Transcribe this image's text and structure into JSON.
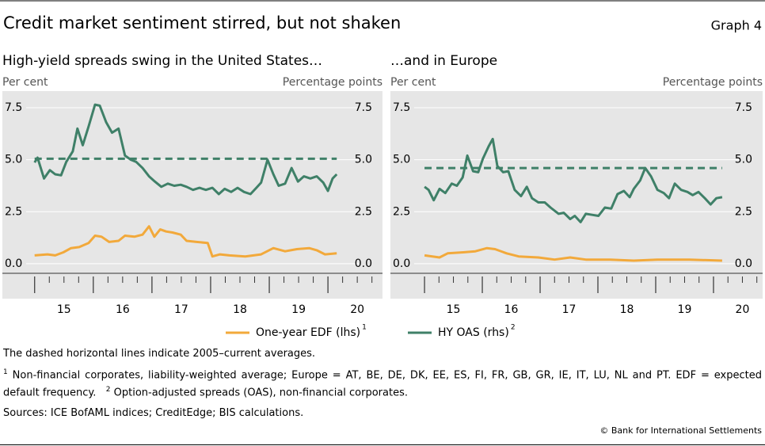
{
  "header": {
    "title": "Credit market sentiment stirred, but not shaken",
    "graph_label": "Graph 4"
  },
  "chart_data": [
    {
      "type": "line",
      "title": "High-yield spreads swing in the United States…",
      "y_label": "Per cent",
      "y2_label": "Percentage points",
      "xlim": [
        2014.45,
        2020.93
      ],
      "ylim": [
        -0.46,
        8.3
      ],
      "y2lim": [
        -0.46,
        8.3
      ],
      "xticks": [
        {
          "value": 2015,
          "label": "15"
        },
        {
          "value": 2016,
          "label": "16"
        },
        {
          "value": 2017,
          "label": "17"
        },
        {
          "value": 2018,
          "label": "18"
        },
        {
          "value": 2019,
          "label": "19"
        },
        {
          "value": 2020,
          "label": "20"
        }
      ],
      "yticks": [
        {
          "value": 0,
          "label": "0.0"
        },
        {
          "value": 2.5,
          "label": "2.5"
        },
        {
          "value": 5,
          "label": "5.0"
        },
        {
          "value": 7.5,
          "label": "7.5"
        }
      ],
      "y2ticks": [
        {
          "value": 0,
          "label": "0.0"
        },
        {
          "value": 2.5,
          "label": "2.5"
        },
        {
          "value": 5,
          "label": "5.0"
        },
        {
          "value": 7.5,
          "label": "7.5"
        }
      ],
      "grid": true,
      "reference_lines": [
        {
          "value": 5.05,
          "axis": "y2"
        }
      ],
      "series": [
        {
          "name": "One-year EDF (lhs)",
          "note_ref": "1",
          "color": "#f2a93b",
          "axis": "y",
          "x": [
            2015.0,
            2015.22,
            2015.35,
            2015.49,
            2015.62,
            2015.76,
            2015.92,
            2016.03,
            2016.14,
            2016.27,
            2016.43,
            2016.54,
            2016.7,
            2016.84,
            2016.95,
            2017.04,
            2017.14,
            2017.24,
            2017.35,
            2017.49,
            2017.59,
            2017.76,
            2017.95,
            2018.03,
            2018.16,
            2018.32,
            2018.59,
            2018.86,
            2019.07,
            2019.27,
            2019.47,
            2019.68,
            2019.81,
            2019.95,
            2020.15
          ],
          "values": [
            0.4,
            0.45,
            0.4,
            0.55,
            0.75,
            0.8,
            1.0,
            1.35,
            1.3,
            1.05,
            1.1,
            1.35,
            1.3,
            1.4,
            1.8,
            1.3,
            1.65,
            1.55,
            1.5,
            1.4,
            1.1,
            1.05,
            1.0,
            0.35,
            0.45,
            0.4,
            0.35,
            0.45,
            0.75,
            0.6,
            0.7,
            0.75,
            0.65,
            0.45,
            0.5
          ]
        },
        {
          "name": "HY OAS (rhs)",
          "note_ref": "2",
          "color": "#3f8068",
          "axis": "y2",
          "x": [
            2015.0,
            2015.05,
            2015.16,
            2015.26,
            2015.35,
            2015.45,
            2015.54,
            2015.65,
            2015.73,
            2015.82,
            2015.92,
            2016.03,
            2016.11,
            2016.22,
            2016.32,
            2016.43,
            2016.54,
            2016.64,
            2016.73,
            2016.84,
            2016.95,
            2017.05,
            2017.16,
            2017.27,
            2017.38,
            2017.49,
            2017.59,
            2017.7,
            2017.81,
            2017.92,
            2018.03,
            2018.14,
            2018.24,
            2018.35,
            2018.46,
            2018.57,
            2018.68,
            2018.78,
            2018.86,
            2018.97,
            2019.07,
            2019.16,
            2019.27,
            2019.38,
            2019.49,
            2019.59,
            2019.7,
            2019.81,
            2019.92,
            2020.0,
            2020.08,
            2020.15
          ],
          "values": [
            4.87,
            5.1,
            4.1,
            4.5,
            4.3,
            4.25,
            4.9,
            5.4,
            6.5,
            5.7,
            6.6,
            7.65,
            7.6,
            6.8,
            6.3,
            6.5,
            5.2,
            5.0,
            4.9,
            4.6,
            4.2,
            3.95,
            3.7,
            3.85,
            3.75,
            3.8,
            3.7,
            3.55,
            3.65,
            3.55,
            3.65,
            3.35,
            3.6,
            3.45,
            3.65,
            3.45,
            3.35,
            3.65,
            3.9,
            5.0,
            4.3,
            3.75,
            3.85,
            4.6,
            3.95,
            4.2,
            4.1,
            4.2,
            3.9,
            3.5,
            4.1,
            4.3
          ]
        }
      ]
    },
    {
      "type": "line",
      "title": "…and in Europe",
      "y_label": "Per cent",
      "y2_label": "Percentage points",
      "xlim": [
        2014.41,
        2020.85
      ],
      "ylim": [
        -0.46,
        8.3
      ],
      "y2lim": [
        -0.46,
        8.3
      ],
      "xticks": [
        {
          "value": 2015,
          "label": "15"
        },
        {
          "value": 2016,
          "label": "16"
        },
        {
          "value": 2017,
          "label": "17"
        },
        {
          "value": 2018,
          "label": "18"
        },
        {
          "value": 2019,
          "label": "19"
        },
        {
          "value": 2020,
          "label": "20"
        }
      ],
      "yticks": [
        {
          "value": 0,
          "label": "0.0"
        },
        {
          "value": 2.5,
          "label": "2.5"
        },
        {
          "value": 5,
          "label": "5.0"
        },
        {
          "value": 7.5,
          "label": "7.5"
        }
      ],
      "y2ticks": [
        {
          "value": 0,
          "label": "0.0"
        },
        {
          "value": 2.5,
          "label": "2.5"
        },
        {
          "value": 5,
          "label": "5.0"
        },
        {
          "value": 7.5,
          "label": "7.5"
        }
      ],
      "grid": true,
      "reference_lines": [
        {
          "value": 4.6,
          "axis": "y2"
        }
      ],
      "series": [
        {
          "name": "One-year EDF (lhs)",
          "note_ref": "1",
          "color": "#f2a93b",
          "axis": "y",
          "x": [
            2015.0,
            2015.26,
            2015.4,
            2015.67,
            2015.88,
            2016.08,
            2016.22,
            2016.42,
            2016.63,
            2016.97,
            2017.25,
            2017.52,
            2017.79,
            2018.21,
            2018.62,
            2019.03,
            2019.58,
            2020.15
          ],
          "values": [
            0.4,
            0.3,
            0.5,
            0.55,
            0.6,
            0.75,
            0.7,
            0.5,
            0.35,
            0.3,
            0.2,
            0.3,
            0.2,
            0.2,
            0.15,
            0.2,
            0.2,
            0.15
          ]
        },
        {
          "name": "HY OAS (rhs)",
          "note_ref": "2",
          "color": "#3f8068",
          "axis": "y2",
          "x": [
            2015.0,
            2015.07,
            2015.16,
            2015.26,
            2015.36,
            2015.47,
            2015.56,
            2015.66,
            2015.74,
            2015.84,
            2015.93,
            2016.01,
            2016.11,
            2016.18,
            2016.26,
            2016.36,
            2016.45,
            2016.56,
            2016.67,
            2016.77,
            2016.86,
            2016.97,
            2017.08,
            2017.18,
            2017.32,
            2017.41,
            2017.52,
            2017.6,
            2017.7,
            2017.79,
            2017.9,
            2018.01,
            2018.12,
            2018.23,
            2018.34,
            2018.45,
            2018.55,
            2018.62,
            2018.73,
            2018.82,
            2018.92,
            2019.03,
            2019.14,
            2019.23,
            2019.33,
            2019.44,
            2019.55,
            2019.64,
            2019.74,
            2019.85,
            2019.95,
            2020.05,
            2020.15
          ],
          "values": [
            3.7,
            3.55,
            3.05,
            3.6,
            3.4,
            3.85,
            3.75,
            4.15,
            5.2,
            4.45,
            4.4,
            5.05,
            5.65,
            6.0,
            4.7,
            4.4,
            4.45,
            3.55,
            3.25,
            3.7,
            3.15,
            2.95,
            2.95,
            2.7,
            2.4,
            2.45,
            2.15,
            2.3,
            2.0,
            2.4,
            2.35,
            2.3,
            2.7,
            2.65,
            3.35,
            3.5,
            3.2,
            3.6,
            4.0,
            4.6,
            4.2,
            3.55,
            3.4,
            3.15,
            3.85,
            3.55,
            3.45,
            3.3,
            3.45,
            3.15,
            2.85,
            3.15,
            3.2
          ]
        }
      ]
    }
  ],
  "notes": {
    "dashed": "The dashed horizontal lines indicate 2005–current averages.",
    "footnotes": [
      {
        "marker": "1",
        "text": "Non-financial corporates, liability-weighted average; Europe = AT, BE, DE, DK, EE, ES, FI, FR, GB, GR, IE, IT, LU, NL and PT. EDF = expected default frequency."
      },
      {
        "marker": "2",
        "text": "Option-adjusted spreads (OAS), non-financial corporates."
      }
    ],
    "sources": "Sources: ICE BofAML indices; CreditEdge; BIS calculations.",
    "copyright": "© Bank for International Settlements"
  }
}
